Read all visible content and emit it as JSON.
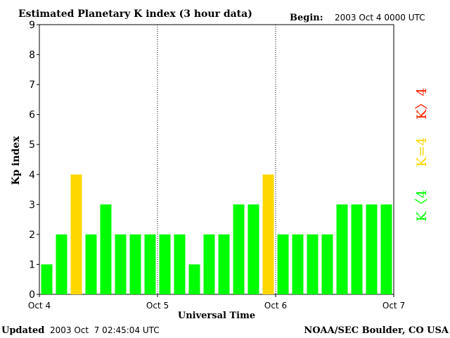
{
  "header": {
    "title": "Estimated Planetary K index (3 hour data)",
    "begin_label": "Begin:",
    "begin_value": "2003 Oct 4 0000 UTC"
  },
  "footer": {
    "updated_label": "Updated",
    "updated_value": "2003 Oct  7 02:45:04 UTC",
    "source": "NOAA/SEC Boulder, CO USA"
  },
  "legend": {
    "high": "K〉4",
    "equal": "K=4",
    "low": "K〈4"
  },
  "colors": {
    "low": "#00ff00",
    "equal": "#ffd700",
    "high": "#ff2200",
    "grid": "#000000",
    "background": "#ffffff"
  },
  "chart_data": {
    "type": "bar",
    "title": "Estimated Planetary K index (3 hour data)",
    "xlabel": "Universal Time",
    "ylabel": "Kp index",
    "ylim": [
      0,
      9
    ],
    "yticks": [
      "0",
      "1",
      "2",
      "3",
      "4",
      "5",
      "6",
      "7",
      "8",
      "9"
    ],
    "xticks": [
      "Oct 4",
      "Oct 5",
      "Oct 6",
      "Oct 7"
    ],
    "interval_hours": 3,
    "values": [
      1,
      2,
      4,
      2,
      3,
      2,
      2,
      2,
      2,
      2,
      1,
      2,
      2,
      3,
      3,
      4,
      2,
      2,
      2,
      2,
      3,
      3,
      3,
      3
    ],
    "color_rule": "K<4 green, K=4 yellow, K>4 red",
    "day_separators": "dotted",
    "grid": false
  }
}
